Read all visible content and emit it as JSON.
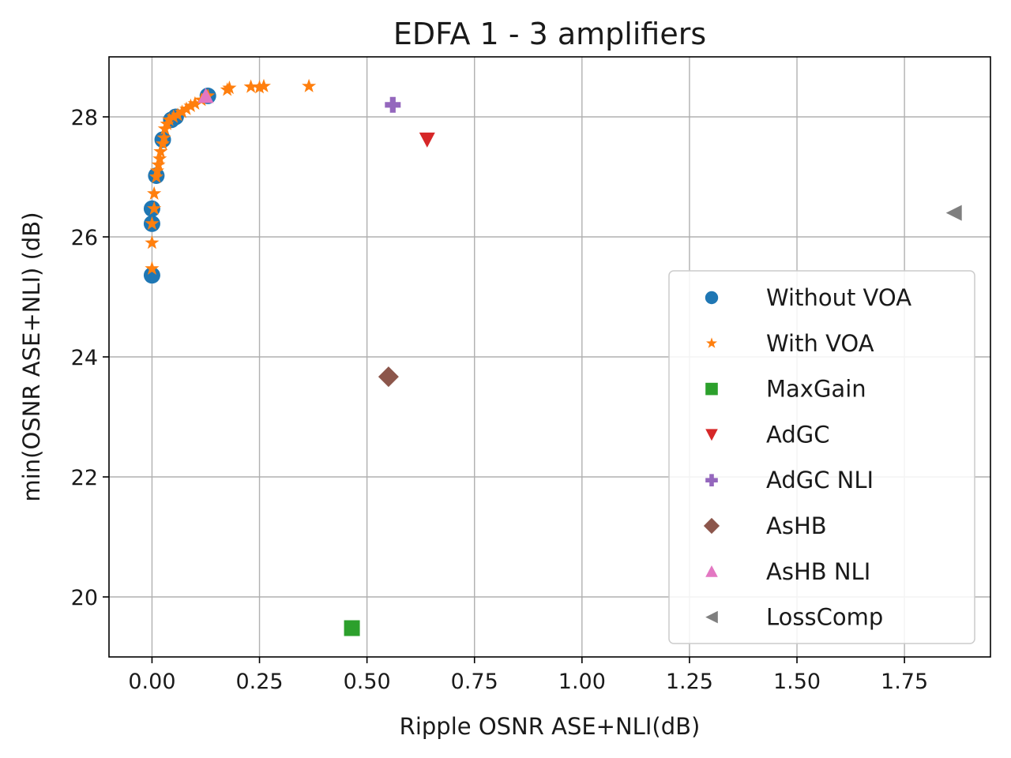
{
  "chart_data": {
    "type": "scatter",
    "title": "EDFA 1 - 3 amplifiers",
    "xlabel": "Ripple OSNR ASE+NLI(dB)",
    "ylabel": "min(OSNR ASE+NLI) (dB)",
    "xlim": [
      -0.1,
      1.95
    ],
    "ylim": [
      19.0,
      29.0
    ],
    "xticks": [
      0.0,
      0.25,
      0.5,
      0.75,
      1.0,
      1.25,
      1.5,
      1.75
    ],
    "xtick_labels": [
      "0.00",
      "0.25",
      "0.50",
      "0.75",
      "1.00",
      "1.25",
      "1.50",
      "1.75"
    ],
    "yticks": [
      20,
      22,
      24,
      26,
      28
    ],
    "ytick_labels": [
      "20",
      "22",
      "24",
      "26",
      "28"
    ],
    "grid": true,
    "legend_position": "right",
    "series": [
      {
        "name": "Without VOA",
        "marker": "circle",
        "color": "#1f77b4",
        "x": [
          0.0,
          0.0,
          0.0,
          0.01,
          0.025,
          0.045,
          0.055,
          0.13
        ],
        "y": [
          25.36,
          26.22,
          26.47,
          27.02,
          27.62,
          27.95,
          28.0,
          28.35
        ]
      },
      {
        "name": "With VOA",
        "marker": "star",
        "color": "#ff7f0e",
        "x": [
          0.0,
          0.0,
          0.0,
          0.005,
          0.005,
          0.01,
          0.012,
          0.015,
          0.018,
          0.02,
          0.025,
          0.028,
          0.03,
          0.035,
          0.04,
          0.05,
          0.06,
          0.07,
          0.08,
          0.09,
          0.1,
          0.115,
          0.13,
          0.175,
          0.18,
          0.23,
          0.25,
          0.26,
          0.365
        ],
        "y": [
          25.47,
          25.9,
          26.22,
          26.47,
          26.72,
          27.0,
          27.1,
          27.2,
          27.3,
          27.42,
          27.55,
          27.65,
          27.8,
          27.88,
          27.95,
          28.0,
          28.03,
          28.08,
          28.13,
          28.18,
          28.22,
          28.28,
          28.35,
          28.45,
          28.48,
          28.5,
          28.49,
          28.51,
          28.51
        ]
      },
      {
        "name": "MaxGain",
        "marker": "square",
        "color": "#2ca02c",
        "x": [
          0.465
        ],
        "y": [
          19.48
        ]
      },
      {
        "name": "AdGC",
        "marker": "triangle-down",
        "color": "#d62728",
        "x": [
          0.64
        ],
        "y": [
          27.62
        ]
      },
      {
        "name": "AdGC NLI",
        "marker": "plus",
        "color": "#9467bd",
        "x": [
          0.56
        ],
        "y": [
          28.2
        ]
      },
      {
        "name": "AsHB",
        "marker": "diamond",
        "color": "#8c564b",
        "x": [
          0.55
        ],
        "y": [
          23.67
        ]
      },
      {
        "name": "AsHB NLI",
        "marker": "triangle-up",
        "color": "#e377c2",
        "x": [
          0.125
        ],
        "y": [
          28.35
        ]
      },
      {
        "name": "LossComp",
        "marker": "triangle-left",
        "color": "#7f7f7f",
        "x": [
          1.865
        ],
        "y": [
          26.4
        ]
      }
    ]
  }
}
